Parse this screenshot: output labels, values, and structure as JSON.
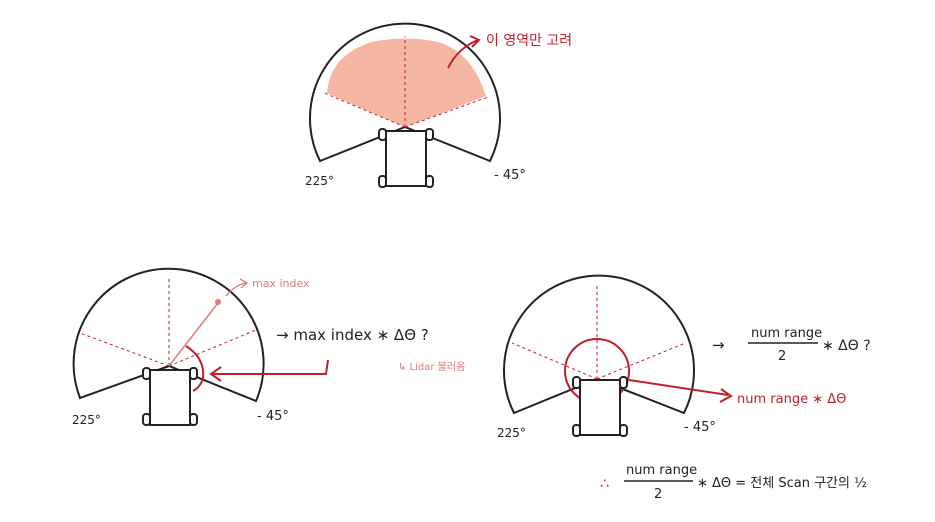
{
  "top": {
    "annotation": "이 영역만 고려",
    "angle_left": "225°",
    "angle_right": "- 45°"
  },
  "bottom_left": {
    "angle_left": "225°",
    "angle_right": "- 45°",
    "pointer_label": "max index",
    "formula": "→ max index ∗ ΔΘ ?",
    "sub_note": "↳ Lidar 불러옴"
  },
  "bottom_right": {
    "angle_left": "225°",
    "angle_right": "- 45°",
    "formula_prefix": "→",
    "formula_numerator": "num range",
    "formula_denominator": "2",
    "formula_suffix": "∗ ΔΘ ?",
    "red_label": "num range ∗ ΔΘ"
  },
  "conclusion": {
    "therefore": "∴",
    "numerator": "num range",
    "denominator": "2",
    "suffix": "∗ ΔΘ  =  전체 Scan 구간의 ½"
  },
  "colors": {
    "ink": "#222222",
    "red": "#c0202a",
    "fill": "#f5b7a3",
    "pink": "#e07a78"
  }
}
